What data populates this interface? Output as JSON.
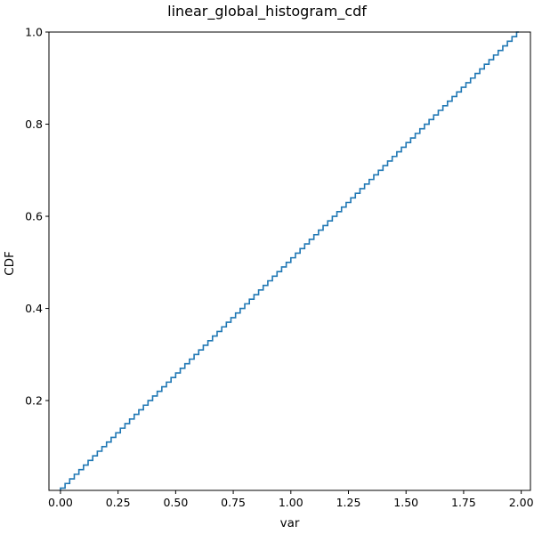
{
  "chart_data": {
    "type": "line",
    "style": "step",
    "title": "linear_global_histogram_cdf",
    "xlabel": "var",
    "ylabel": "CDF",
    "xlim": [
      -0.05,
      2.04
    ],
    "ylim": [
      0.005,
      1.0
    ],
    "xticks": [
      0.0,
      0.25,
      0.5,
      0.75,
      1.0,
      1.25,
      1.5,
      1.75,
      2.0
    ],
    "xtick_labels": [
      "0.00",
      "0.25",
      "0.50",
      "0.75",
      "1.00",
      "1.25",
      "1.50",
      "1.75",
      "2.00"
    ],
    "yticks": [
      0.2,
      0.4,
      0.6,
      0.8,
      1.0
    ],
    "ytick_labels": [
      "0.2",
      "0.4",
      "0.6",
      "0.8",
      "1.0"
    ],
    "grid": false,
    "legend": "none",
    "series_color": "#1f77b4",
    "series": [
      {
        "x": [
          0.0,
          0.02,
          0.04,
          0.06,
          0.08,
          0.1,
          0.12,
          0.14,
          0.16,
          0.18,
          0.2,
          0.22,
          0.24,
          0.26,
          0.28,
          0.3,
          0.32,
          0.34,
          0.36,
          0.38,
          0.4,
          0.42,
          0.44,
          0.46,
          0.48,
          0.5,
          0.52,
          0.54,
          0.56,
          0.58,
          0.6,
          0.62,
          0.64,
          0.66,
          0.68,
          0.7,
          0.72,
          0.74,
          0.76,
          0.78,
          0.8,
          0.82,
          0.84,
          0.86,
          0.88,
          0.9,
          0.92,
          0.94,
          0.96,
          0.98,
          1.0,
          1.02,
          1.04,
          1.06,
          1.08,
          1.1,
          1.12,
          1.14,
          1.16,
          1.18,
          1.2,
          1.22,
          1.24,
          1.26,
          1.28,
          1.3,
          1.32,
          1.34,
          1.36,
          1.38,
          1.4,
          1.42,
          1.44,
          1.46,
          1.48,
          1.5,
          1.52,
          1.54,
          1.56,
          1.58,
          1.6,
          1.62,
          1.64,
          1.66,
          1.68,
          1.7,
          1.72,
          1.74,
          1.76,
          1.78,
          1.8,
          1.82,
          1.84,
          1.86,
          1.88,
          1.9,
          1.92,
          1.94,
          1.96,
          1.98
        ],
        "y": [
          0.01,
          0.02,
          0.03,
          0.04,
          0.05,
          0.06,
          0.07,
          0.08,
          0.09,
          0.1,
          0.11,
          0.12,
          0.13,
          0.14,
          0.15,
          0.16,
          0.17,
          0.18,
          0.19,
          0.2,
          0.21,
          0.22,
          0.23,
          0.24,
          0.25,
          0.26,
          0.27,
          0.28,
          0.29,
          0.3,
          0.31,
          0.32,
          0.33,
          0.34,
          0.35,
          0.36,
          0.37,
          0.38,
          0.39,
          0.4,
          0.41,
          0.42,
          0.43,
          0.44,
          0.45,
          0.46,
          0.47,
          0.48,
          0.49,
          0.5,
          0.51,
          0.52,
          0.53,
          0.54,
          0.55,
          0.56,
          0.57,
          0.58,
          0.59,
          0.6,
          0.61,
          0.62,
          0.63,
          0.64,
          0.65,
          0.66,
          0.67,
          0.68,
          0.69,
          0.7,
          0.71,
          0.72,
          0.73,
          0.74,
          0.75,
          0.76,
          0.77,
          0.78,
          0.79,
          0.8,
          0.81,
          0.82,
          0.83,
          0.84,
          0.85,
          0.86,
          0.87,
          0.88,
          0.89,
          0.9,
          0.91,
          0.92,
          0.93,
          0.94,
          0.95,
          0.96,
          0.97,
          0.98,
          0.99,
          1.0
        ]
      }
    ]
  }
}
